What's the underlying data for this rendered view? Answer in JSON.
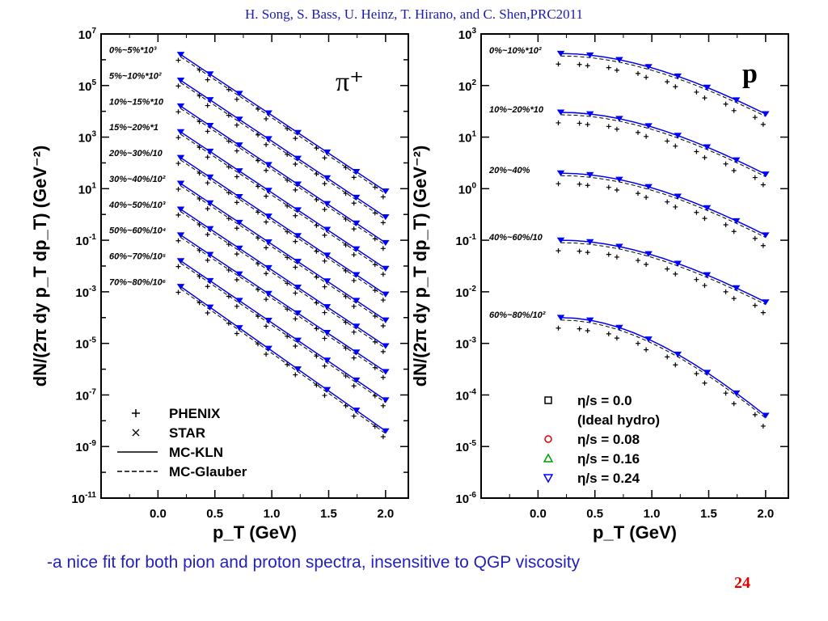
{
  "citation": "H. Song, S. Bass, U. Heinz, T. Hirano, and  C. Shen,PRC2011",
  "caption": "-a nice fit for both pion and proton spectra, insensitive to QGP viscosity",
  "page_number": "24",
  "colors": {
    "citation": "#1a1ab8",
    "caption": "#2222bb",
    "page_number": "#e00000",
    "eta_0_0": "#000000",
    "eta_0_08": "#e00000",
    "eta_0_16": "#00a000",
    "eta_0_24": "#0000ff"
  },
  "chart_data": [
    {
      "type": "line",
      "panel_label": "π⁺",
      "xlabel": "p_T (GeV)",
      "ylabel": "dN/(2π dy p_T dp_T) (GeV⁻²)",
      "yscale": "log",
      "xlim": [
        -0.5,
        2.2
      ],
      "ylim_exp": [
        -11,
        7
      ],
      "x_ticks": [
        "0.0",
        "0.5",
        "1.0",
        "1.5",
        "2.0"
      ],
      "y_tick_exponents": [
        7,
        5,
        3,
        1,
        -1,
        -3,
        -5,
        -7,
        -9,
        -11
      ],
      "legend_placement": "bottom-left",
      "legend": [
        {
          "marker": "+",
          "label": "PHENIX"
        },
        {
          "marker": "×",
          "label": "STAR"
        },
        {
          "line": "solid",
          "label": "MC-KLN"
        },
        {
          "line": "dashed",
          "label": "MC-Glauber"
        }
      ],
      "series": [
        {
          "name": "0%~5%*10³",
          "y_at_0_2": 6.2,
          "y_at_2_0": 0.9
        },
        {
          "name": "5%~10%*10²",
          "y_at_0_2": 5.2,
          "y_at_2_0": -0.1
        },
        {
          "name": "10%~15%*10",
          "y_at_0_2": 4.2,
          "y_at_2_0": -1.1
        },
        {
          "name": "15%~20%*1",
          "y_at_0_2": 3.2,
          "y_at_2_0": -2.1
        },
        {
          "name": "20%~30%/10",
          "y_at_0_2": 2.2,
          "y_at_2_0": -3.1
        },
        {
          "name": "30%~40%/10²",
          "y_at_0_2": 1.2,
          "y_at_2_0": -4.1
        },
        {
          "name": "40%~50%/10³",
          "y_at_0_2": 0.2,
          "y_at_2_0": -5.1
        },
        {
          "name": "50%~60%/10⁴",
          "y_at_0_2": -0.8,
          "y_at_2_0": -6.1
        },
        {
          "name": "60%~70%/10⁵",
          "y_at_0_2": -1.8,
          "y_at_2_0": -7.2
        },
        {
          "name": "70%~80%/10⁶",
          "y_at_0_2": -2.8,
          "y_at_2_0": -8.4
        }
      ]
    },
    {
      "type": "line",
      "panel_label": "p",
      "xlabel": "p_T (GeV)",
      "ylabel": "dN/(2π dy p_T dp_T) (GeV⁻²)",
      "yscale": "log",
      "xlim": [
        -0.5,
        2.2
      ],
      "ylim_exp": [
        -6,
        3
      ],
      "x_ticks": [
        "0.0",
        "0.5",
        "1.0",
        "1.5",
        "2.0"
      ],
      "y_tick_exponents": [
        3,
        2,
        1,
        0,
        -1,
        -2,
        -3,
        -4,
        -5,
        -6
      ],
      "legend_placement": "bottom-right",
      "legend": [
        {
          "marker": "square",
          "label": "η/s = 0.0",
          "sub": "(Ideal hydro)"
        },
        {
          "marker": "circle",
          "label": "η/s = 0.08"
        },
        {
          "marker": "triangle-up",
          "label": "η/s = 0.16"
        },
        {
          "marker": "triangle-down",
          "label": "η/s = 0.24"
        }
      ],
      "series": [
        {
          "name": "0%~10%*10²",
          "y_at_0_2": 2.62,
          "y_at_2_0": 1.45
        },
        {
          "name": "10%~20%*10",
          "y_at_0_2": 1.48,
          "y_at_2_0": 0.28
        },
        {
          "name": "20%~40%",
          "y_at_0_2": 0.3,
          "y_at_2_0": -0.9
        },
        {
          "name": "40%~60%/10",
          "y_at_0_2": -1.0,
          "y_at_2_0": -2.2
        },
        {
          "name": "60%~80%/10²",
          "y_at_0_2": -2.5,
          "y_at_2_0": -4.4
        }
      ]
    }
  ]
}
